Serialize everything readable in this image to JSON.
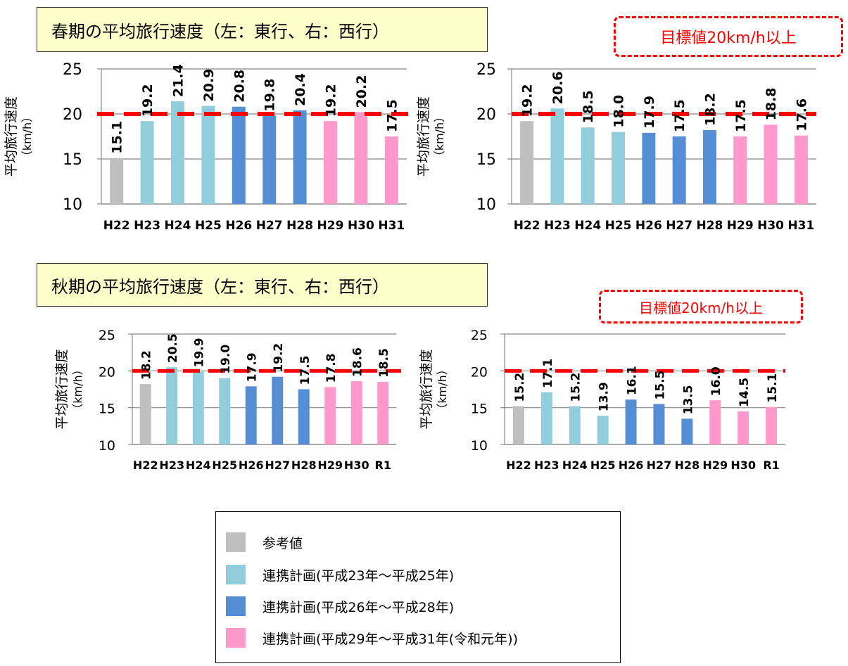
{
  "spring": {
    "title": "春期の平均旅行速度（左：東行、右：西行）",
    "target": "目標値20km/h以上"
  },
  "autumn": {
    "title": "秋期の平均旅行速度（左：東行、右：西行）",
    "target": "目標値20km/h以上"
  },
  "colors": {
    "reference": "#bfbfbf",
    "plan1": "#92cddc",
    "plan2": "#558ed5",
    "plan3": "#ff99cc",
    "target_line": "#ff0000"
  },
  "legend": {
    "items": [
      {
        "label": "参考値",
        "color": "#bfbfbf"
      },
      {
        "label": "連携計画(平成23年～平成25年)",
        "color": "#92cddc"
      },
      {
        "label": "連携計画(平成26年～平成28年)",
        "color": "#558ed5"
      },
      {
        "label": "連携計画(平成29年～平成31年(令和元年))",
        "color": "#ff99cc"
      }
    ]
  },
  "chart_data": [
    {
      "type": "bar",
      "title": "",
      "ylabel": "平均旅行速度\n（km/h）",
      "categories": [
        "H22",
        "H23",
        "H24",
        "H25",
        "H26",
        "H27",
        "H28",
        "H29",
        "H30",
        "H31"
      ],
      "values": [
        15.1,
        19.2,
        21.4,
        20.9,
        20.8,
        19.8,
        20.4,
        19.2,
        20.2,
        17.5
      ],
      "groups": [
        "reference",
        "plan1",
        "plan1",
        "plan1",
        "plan2",
        "plan2",
        "plan2",
        "plan3",
        "plan3",
        "plan3"
      ],
      "ylim": [
        10,
        25
      ],
      "yticks": [
        10,
        15,
        20,
        25
      ],
      "target": 20,
      "grid": true
    },
    {
      "type": "bar",
      "title": "",
      "ylabel": "平均旅行速度\n（km/h）",
      "categories": [
        "H22",
        "H23",
        "H24",
        "H25",
        "H26",
        "H27",
        "H28",
        "H29",
        "H30",
        "H31"
      ],
      "values": [
        19.2,
        20.6,
        18.5,
        18.0,
        17.9,
        17.5,
        18.2,
        17.5,
        18.8,
        17.6
      ],
      "groups": [
        "reference",
        "plan1",
        "plan1",
        "plan1",
        "plan2",
        "plan2",
        "plan2",
        "plan3",
        "plan3",
        "plan3"
      ],
      "ylim": [
        10,
        25
      ],
      "yticks": [
        10,
        15,
        20,
        25
      ],
      "target": 20,
      "grid": true
    },
    {
      "type": "bar",
      "title": "",
      "ylabel": "平均旅行速度\n（km/h）",
      "categories": [
        "H22",
        "H23",
        "H24",
        "H25",
        "H26",
        "H27",
        "H28",
        "H29",
        "H30",
        "R1"
      ],
      "values": [
        18.2,
        20.5,
        19.9,
        19.0,
        17.9,
        19.2,
        17.5,
        17.8,
        18.6,
        18.5
      ],
      "groups": [
        "reference",
        "plan1",
        "plan1",
        "plan1",
        "plan2",
        "plan2",
        "plan2",
        "plan3",
        "plan3",
        "plan3"
      ],
      "ylim": [
        10,
        25
      ],
      "yticks": [
        10,
        15,
        20,
        25
      ],
      "target": 20,
      "grid": true
    },
    {
      "type": "bar",
      "title": "",
      "ylabel": "平均旅行速度\n（km/h）",
      "categories": [
        "H22",
        "H23",
        "H24",
        "H25",
        "H26",
        "H27",
        "H28",
        "H29",
        "H30",
        "R1"
      ],
      "values": [
        15.2,
        17.1,
        15.2,
        13.9,
        16.1,
        15.5,
        13.5,
        16.0,
        14.5,
        15.1
      ],
      "groups": [
        "reference",
        "plan1",
        "plan1",
        "plan1",
        "plan2",
        "plan2",
        "plan2",
        "plan3",
        "plan3",
        "plan3"
      ],
      "ylim": [
        10,
        25
      ],
      "yticks": [
        10,
        15,
        20,
        25
      ],
      "target": 20,
      "grid": true
    }
  ]
}
